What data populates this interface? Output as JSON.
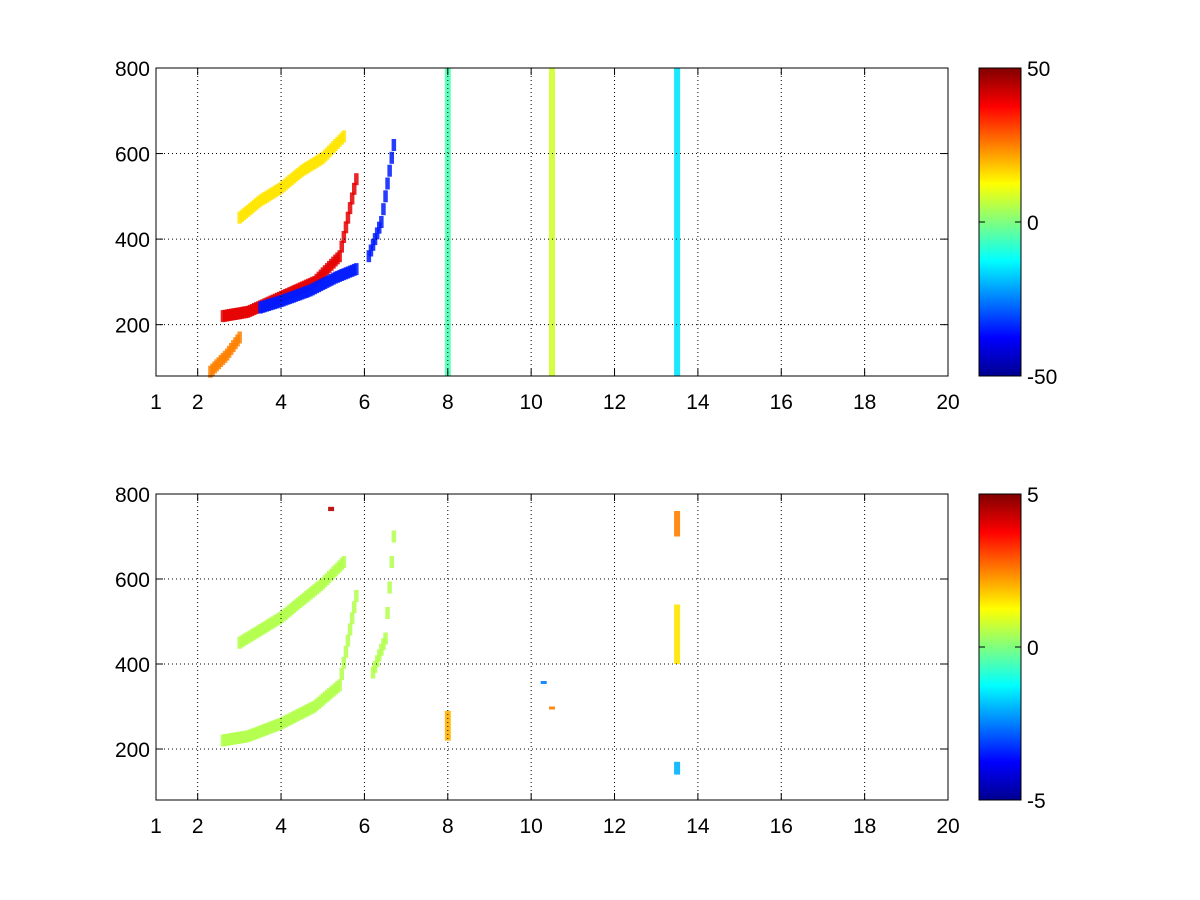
{
  "chart_data": [
    {
      "type": "heatmap",
      "title": "",
      "xlabel": "",
      "ylabel": "",
      "xlim": [
        1,
        20
      ],
      "ylim": [
        80,
        800
      ],
      "x_ticks": [
        1,
        2,
        4,
        6,
        8,
        10,
        12,
        14,
        16,
        18,
        20
      ],
      "x_tick_labels": [
        "1",
        "2",
        "4",
        "6",
        "8",
        "10",
        "12",
        "14",
        "16",
        "18",
        "20"
      ],
      "y_ticks": [
        200,
        400,
        600,
        800
      ],
      "y_tick_labels": [
        "200",
        "400",
        "600",
        "800"
      ],
      "grid": "dotted",
      "colormap": "jet",
      "clim": [
        -50,
        50
      ],
      "colorbar": {
        "placement": "right",
        "ticks": [
          -50,
          0,
          50
        ],
        "tick_labels": [
          "-50",
          "0",
          "50"
        ]
      },
      "features": [
        {
          "x": [
            2.6,
            3.2,
            4.0,
            4.8,
            5.4,
            5.8
          ],
          "y": [
            220,
            230,
            265,
            300,
            360,
            540
          ],
          "value": 40
        },
        {
          "x": [
            3.5,
            4.0,
            4.7,
            5.3,
            5.8
          ],
          "y": [
            240,
            255,
            280,
            310,
            330
          ],
          "value": -35
        },
        {
          "x": [
            3.0,
            3.5,
            4.0,
            4.5,
            5.0,
            5.5
          ],
          "y": [
            450,
            490,
            520,
            560,
            590,
            640
          ],
          "value": 15
        },
        {
          "x": [
            2.3,
            2.7,
            3.0
          ],
          "y": [
            90,
            130,
            170
          ],
          "value": 25
        },
        {
          "x": [
            6.1,
            6.4,
            6.7
          ],
          "y": [
            360,
            440,
            620
          ],
          "value": -35
        },
        {
          "x": [
            8.0
          ],
          "y": [
            80,
            800
          ],
          "value": -5
        },
        {
          "x": [
            10.5
          ],
          "y": [
            80,
            800
          ],
          "value": 8
        },
        {
          "x": [
            13.5
          ],
          "y": [
            80,
            800
          ],
          "value": -15
        }
      ]
    },
    {
      "type": "heatmap",
      "title": "",
      "xlabel": "",
      "ylabel": "",
      "xlim": [
        1,
        20
      ],
      "ylim": [
        80,
        800
      ],
      "x_ticks": [
        1,
        2,
        4,
        6,
        8,
        10,
        12,
        14,
        16,
        18,
        20
      ],
      "x_tick_labels": [
        "1",
        "2",
        "4",
        "6",
        "8",
        "10",
        "12",
        "14",
        "16",
        "18",
        "20"
      ],
      "y_ticks": [
        200,
        400,
        600,
        800
      ],
      "y_tick_labels": [
        "200",
        "400",
        "600",
        "800"
      ],
      "grid": "dotted",
      "colormap": "jet",
      "clim": [
        -5,
        5
      ],
      "colorbar": {
        "placement": "right",
        "ticks": [
          -5,
          0,
          5
        ],
        "tick_labels": [
          "-5",
          "0",
          "5"
        ]
      },
      "features": [
        {
          "x": [
            2.6,
            3.2,
            4.0,
            4.8,
            5.4,
            5.8
          ],
          "y": [
            220,
            230,
            260,
            300,
            350,
            560
          ],
          "value": 0.5
        },
        {
          "x": [
            3.0,
            3.5,
            4.0,
            4.5,
            5.0,
            5.5
          ],
          "y": [
            450,
            480,
            510,
            550,
            590,
            640
          ],
          "value": 0.5
        },
        {
          "x": [
            6.2,
            6.5,
            6.7
          ],
          "y": [
            380,
            460,
            700
          ],
          "value": 0.5
        },
        {
          "x": [
            13.5
          ],
          "y": [
            700,
            760
          ],
          "value": 2.5
        },
        {
          "x": [
            13.5
          ],
          "y": [
            400,
            540
          ],
          "value": 1.5
        },
        {
          "x": [
            13.5
          ],
          "y": [
            140,
            170
          ],
          "value": -2
        },
        {
          "x": [
            8.0
          ],
          "y": [
            220,
            290
          ],
          "value": 2
        },
        {
          "x": [
            5.2
          ],
          "y": [
            760,
            770
          ],
          "value": 4.5
        },
        {
          "x": [
            10.3
          ],
          "y": [
            355,
            360
          ],
          "value": -2.5
        },
        {
          "x": [
            10.5
          ],
          "y": [
            295,
            300
          ],
          "value": 2.5
        }
      ]
    }
  ]
}
